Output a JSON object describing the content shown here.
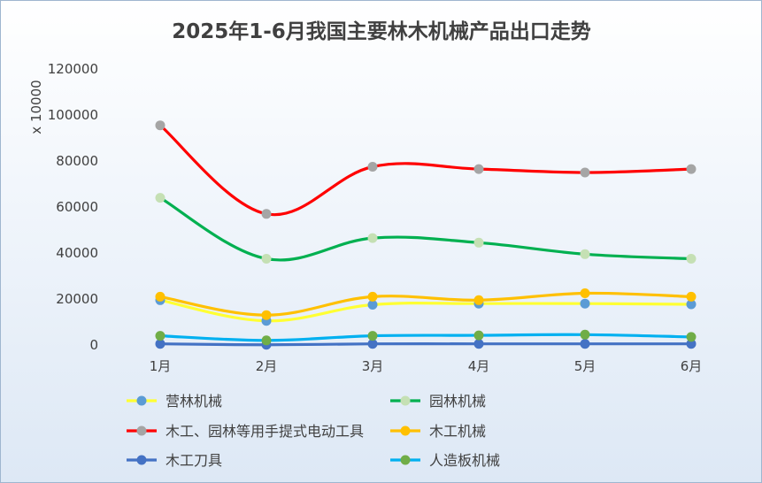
{
  "chart_data": {
    "type": "line",
    "title": "2025年1-6月我国主要林木机械产品出口走势",
    "ylabel": "x 10000",
    "xlabel": "",
    "categories": [
      "1月",
      "2月",
      "3月",
      "4月",
      "5月",
      "6月"
    ],
    "ylim": [
      0,
      120000
    ],
    "yticks": [
      0,
      20000,
      40000,
      60000,
      80000,
      100000,
      120000
    ],
    "grid": false,
    "legend": "bottom",
    "smooth": true,
    "series": [
      {
        "name": "营林机械",
        "values": [
          19500,
          10500,
          17500,
          18000,
          18000,
          17700
        ],
        "line_color": "#FFFF33",
        "marker_color": "#5B9BD5"
      },
      {
        "name": "园林机械",
        "values": [
          64000,
          37500,
          46500,
          44500,
          39500,
          37500
        ],
        "line_color": "#00B050",
        "marker_color": "#C5E0B4"
      },
      {
        "name": "木工、园林等用手提式电动工具",
        "values": [
          95500,
          57000,
          77500,
          76500,
          75000,
          76500
        ],
        "line_color": "#FF0000",
        "marker_color": "#A5A5A5"
      },
      {
        "name": "木工机械",
        "values": [
          21000,
          13000,
          21000,
          19500,
          22500,
          21000
        ],
        "line_color": "#FFC000",
        "marker_color": "#FFC000"
      },
      {
        "name": "木工刀具",
        "values": [
          500,
          100,
          500,
          500,
          500,
          500
        ],
        "line_color": "#4472C4",
        "marker_color": "#4472C4"
      },
      {
        "name": "人造板机械",
        "values": [
          4000,
          2000,
          4000,
          4200,
          4500,
          3500
        ],
        "line_color": "#00B0F0",
        "marker_color": "#70AD47"
      }
    ]
  }
}
